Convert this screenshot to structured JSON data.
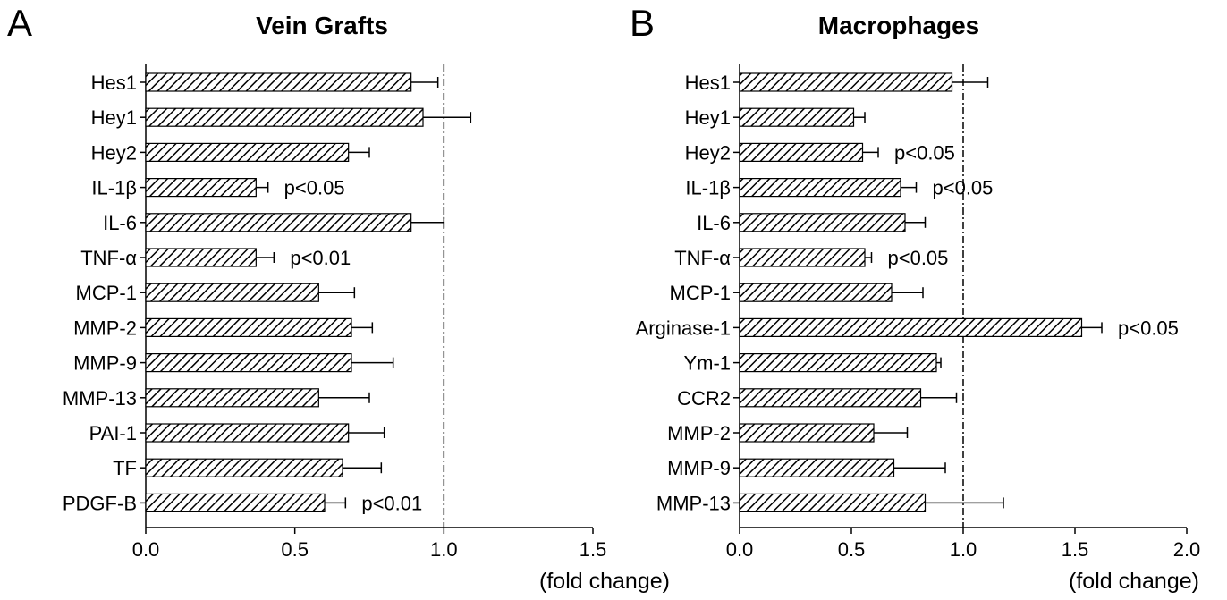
{
  "colors": {
    "bar_fill": "#ffffff",
    "bar_hatch": "#000000",
    "axis": "#000000"
  },
  "chart_data": [
    {
      "type": "bar",
      "orientation": "horizontal",
      "panel_letter": "A",
      "title": "Vein Grafts",
      "xlabel": "(fold change)",
      "xlim": [
        0,
        1.5
      ],
      "xticks": [
        "0.0",
        "0.5",
        "1.0",
        "1.5"
      ],
      "reference_line": 1.0,
      "categories": [
        "Hes1",
        "Hey1",
        "Hey2",
        "IL-1β",
        "IL-6",
        "TNF-α",
        "MCP-1",
        "MMP-2",
        "MMP-9",
        "MMP-13",
        "PAI-1",
        "TF",
        "PDGF-B"
      ],
      "values": [
        0.89,
        0.93,
        0.68,
        0.37,
        0.89,
        0.37,
        0.58,
        0.69,
        0.69,
        0.58,
        0.68,
        0.66,
        0.6
      ],
      "errors": [
        0.09,
        0.16,
        0.07,
        0.04,
        0.11,
        0.06,
        0.12,
        0.07,
        0.14,
        0.17,
        0.12,
        0.13,
        0.07
      ],
      "annotations": [
        "",
        "",
        "",
        "p<0.05",
        "",
        "p<0.01",
        "",
        "",
        "",
        "",
        "",
        "",
        "p<0.01"
      ],
      "grid": false
    },
    {
      "type": "bar",
      "orientation": "horizontal",
      "panel_letter": "B",
      "title": "Macrophages",
      "xlabel": "(fold change)",
      "xlim": [
        0,
        2.0
      ],
      "xticks": [
        "0.0",
        "0.5",
        "1.0",
        "1.5",
        "2.0"
      ],
      "reference_line": 1.0,
      "categories": [
        "Hes1",
        "Hey1",
        "Hey2",
        "IL-1β",
        "IL-6",
        "TNF-α",
        "MCP-1",
        "Arginase-1",
        "Ym-1",
        "CCR2",
        "MMP-2",
        "MMP-9",
        "MMP-13"
      ],
      "values": [
        0.95,
        0.51,
        0.55,
        0.72,
        0.74,
        0.56,
        0.68,
        1.53,
        0.88,
        0.81,
        0.6,
        0.69,
        0.83
      ],
      "errors": [
        0.16,
        0.05,
        0.07,
        0.07,
        0.09,
        0.03,
        0.14,
        0.09,
        0.02,
        0.16,
        0.15,
        0.23,
        0.35
      ],
      "annotations": [
        "",
        "",
        "p<0.05",
        "p<0.05",
        "",
        "p<0.05",
        "",
        "p<0.05",
        "",
        "",
        "",
        "",
        ""
      ],
      "grid": false
    }
  ]
}
